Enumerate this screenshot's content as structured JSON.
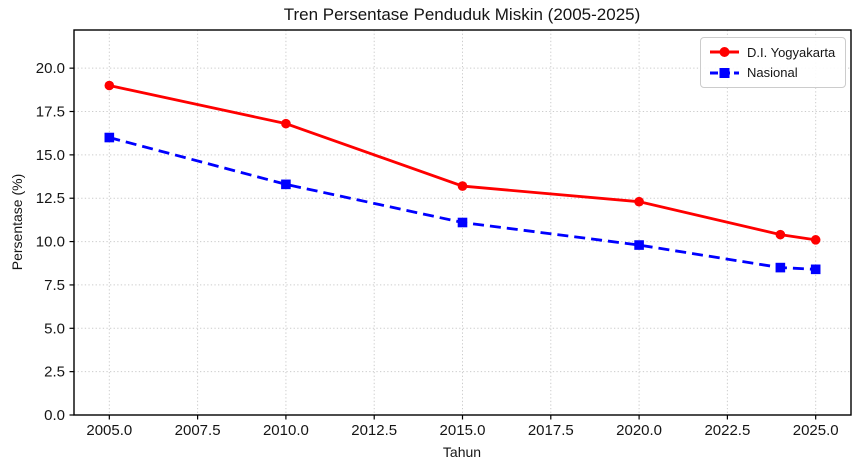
{
  "chart_data": {
    "type": "line",
    "title": "Tren Persentase Penduduk Miskin (2005-2025)",
    "xlabel": "Tahun",
    "ylabel": "Persentase (%)",
    "x": [
      2005,
      2010,
      2015,
      2020,
      2024,
      2025
    ],
    "series": [
      {
        "name": "D.I. Yogyakarta",
        "values": [
          19.0,
          16.8,
          13.2,
          12.3,
          10.4,
          10.1
        ],
        "color": "#ff0000",
        "line_style": "solid",
        "marker": "circle"
      },
      {
        "name": "Nasional",
        "values": [
          16.0,
          13.3,
          11.1,
          9.8,
          8.5,
          8.4
        ],
        "color": "#0000ff",
        "line_style": "dashed",
        "marker": "square"
      }
    ],
    "xlim": [
      2004,
      2026
    ],
    "ylim": [
      0,
      22.2
    ],
    "x_ticks": [
      2005.0,
      2007.5,
      2010.0,
      2012.5,
      2015.0,
      2017.5,
      2020.0,
      2022.5,
      2025.0
    ],
    "x_tick_labels": [
      "2005.0",
      "2007.5",
      "2010.0",
      "2012.5",
      "2015.0",
      "2017.5",
      "2020.0",
      "2022.5",
      "2025.0"
    ],
    "y_ticks": [
      0.0,
      2.5,
      5.0,
      7.5,
      10.0,
      12.5,
      15.0,
      17.5,
      20.0
    ],
    "y_tick_labels": [
      "0.0",
      "2.5",
      "5.0",
      "7.5",
      "10.0",
      "12.5",
      "15.0",
      "17.5",
      "20.0"
    ],
    "grid": "dotted",
    "legend_position": "upper right"
  },
  "styles": {
    "grid_color": "#cccccc",
    "spine_color": "#000000",
    "text_color": "#151515",
    "background": "#ffffff"
  }
}
